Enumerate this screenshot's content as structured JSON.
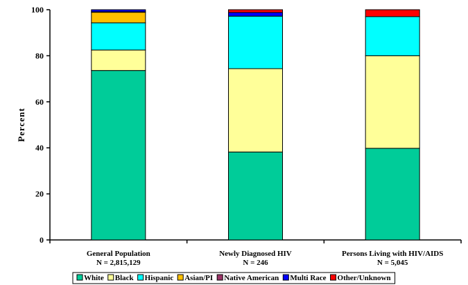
{
  "chart_data": {
    "type": "bar",
    "stacked": true,
    "ylabel": "Percent",
    "xlabel": "",
    "ylim": [
      0,
      100
    ],
    "yticks": [
      0,
      20,
      40,
      60,
      80,
      100
    ],
    "grid": false,
    "legend_position": "bottom",
    "categories": [
      {
        "name": "General Population",
        "n": "N = 2,815,129"
      },
      {
        "name": "Newly Diagnosed HIV",
        "n": "N = 246"
      },
      {
        "name": "Persons Living with HIV/AIDS",
        "n": "N = 5,045"
      }
    ],
    "series": [
      {
        "name": "White",
        "color": "#00CC99",
        "values": [
          73.6,
          38.2,
          39.8
        ]
      },
      {
        "name": "Black",
        "color": "#FFFF99",
        "values": [
          8.9,
          36.2,
          40.2
        ]
      },
      {
        "name": "Hispanic",
        "color": "#00FFFF",
        "values": [
          11.8,
          22.8,
          17.0
        ]
      },
      {
        "name": "Asian/PI",
        "color": "#FFC000",
        "values": [
          4.6,
          0.0,
          0.0
        ]
      },
      {
        "name": "Native American",
        "color": "#993366",
        "values": [
          0.2,
          0.0,
          0.0
        ]
      },
      {
        "name": "Multi Race",
        "color": "#0000FF",
        "values": [
          0.9,
          1.6,
          0.0
        ]
      },
      {
        "name": "Other/Unknown",
        "color": "#FF0000",
        "values": [
          0.0,
          1.2,
          3.0
        ]
      }
    ]
  }
}
